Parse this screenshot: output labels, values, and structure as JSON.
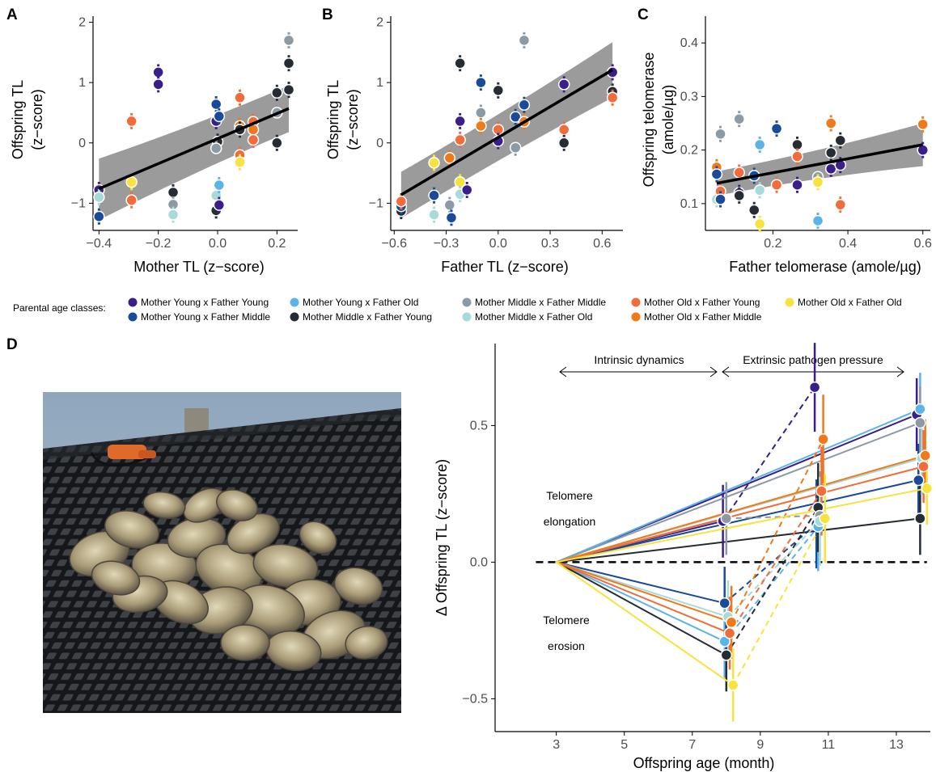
{
  "panels": {
    "A": {
      "letter": "A",
      "xlabel": "Mother TL (z−score)",
      "ylabel_line1": "Offspring TL",
      "ylabel_line2": "(z−score)"
    },
    "B": {
      "letter": "B",
      "xlabel": "Father TL (z−score)",
      "ylabel_line1": "Offspring TL",
      "ylabel_line2": "(z−score)"
    },
    "C": {
      "letter": "C",
      "xlabel": "Father telomerase (amole/µg)",
      "ylabel_line1": "Offspring telomerase",
      "ylabel_line2": "(amole/µg)"
    },
    "D": {
      "letter": "D",
      "xlabel": "Offspring age (month)",
      "ylabel": "Δ Offspring TL (z−score)"
    }
  },
  "legend": {
    "title": "Parental age classes:",
    "items": [
      {
        "label": "Mother Young x Father Young",
        "color": "#3a1f8a"
      },
      {
        "label": "Mother Young x Father Middle",
        "color": "#1a4a9a"
      },
      {
        "label": "Mother Young x Father Old",
        "color": "#5ab4ea"
      },
      {
        "label": "Mother Middle x Father Young",
        "color": "#262c33"
      },
      {
        "label": "Mother Middle x Father Middle",
        "color": "#8c9aa6"
      },
      {
        "label": "Mother Middle x Father Old",
        "color": "#a8dada"
      },
      {
        "label": "Mother Old x Father Young",
        "color": "#f26b3a"
      },
      {
        "label": "Mother Old x Father Middle",
        "color": "#f07a1a"
      },
      {
        "label": "Mother Old x Father Old",
        "color": "#f7e33b"
      }
    ]
  },
  "annotations": {
    "intrinsic": "Intrinsic dynamics",
    "extrinsic": "Extrinsic pathogen pressure",
    "elongation_1": "Telomere",
    "elongation_2": "elongation",
    "erosion_1": "Telomere",
    "erosion_2": "erosion"
  },
  "photo": {
    "description_icon": "oyster-photo"
  },
  "chart_data": [
    {
      "panel": "A",
      "type": "scatter",
      "xlabel": "Mother TL (z−score)",
      "ylabel": "Offspring TL (z−score)",
      "xlim": [
        -0.42,
        0.27
      ],
      "ylim": [
        -1.45,
        2.1
      ],
      "xticks": [
        -0.4,
        -0.2,
        0.0,
        0.2
      ],
      "xticklabels": [
        "−0.4",
        "−0.2",
        "0.0",
        "0.2"
      ],
      "yticks": [
        -1,
        0,
        1,
        2
      ],
      "yticklabels": [
        "−1",
        "0",
        "1",
        "2"
      ],
      "fit": {
        "x": [
          -0.4,
          0.24
        ],
        "y": [
          -0.76,
          0.57
        ],
        "ci_lower": [
          -1.28,
          0.18
        ],
        "ci_upper": [
          -0.26,
          0.95
        ]
      },
      "points": [
        {
          "x": -0.4,
          "y": -0.78,
          "g": 0
        },
        {
          "x": -0.4,
          "y": -1.22,
          "g": 1
        },
        {
          "x": -0.4,
          "y": -0.9,
          "g": 5
        },
        {
          "x": -0.29,
          "y": 0.36,
          "g": 6
        },
        {
          "x": -0.29,
          "y": -0.95,
          "g": 6
        },
        {
          "x": -0.29,
          "y": -0.65,
          "g": 8
        },
        {
          "x": -0.2,
          "y": 1.17,
          "g": 0
        },
        {
          "x": -0.2,
          "y": 0.97,
          "g": 0
        },
        {
          "x": -0.15,
          "y": -0.82,
          "g": 3
        },
        {
          "x": -0.15,
          "y": -1.02,
          "g": 4
        },
        {
          "x": -0.15,
          "y": -1.19,
          "g": 5
        },
        {
          "x": -0.005,
          "y": 0.64,
          "g": 1
        },
        {
          "x": -0.005,
          "y": 0.36,
          "g": 0
        },
        {
          "x": 0.0,
          "y": 0.02,
          "g": 3
        },
        {
          "x": -0.005,
          "y": -0.09,
          "g": 4
        },
        {
          "x": -0.005,
          "y": -0.87,
          "g": 5
        },
        {
          "x": -0.005,
          "y": -1.12,
          "g": 3
        },
        {
          "x": 0.005,
          "y": -1.03,
          "g": 0
        },
        {
          "x": 0.005,
          "y": -0.7,
          "g": 2
        },
        {
          "x": 0.005,
          "y": 0.44,
          "g": 1
        },
        {
          "x": 0.075,
          "y": 0.75,
          "g": 6
        },
        {
          "x": 0.075,
          "y": 0.28,
          "g": 7
        },
        {
          "x": 0.075,
          "y": 0.22,
          "g": 3
        },
        {
          "x": 0.075,
          "y": -0.2,
          "g": 6
        },
        {
          "x": 0.075,
          "y": -0.32,
          "g": 8
        },
        {
          "x": 0.12,
          "y": 0.35,
          "g": 6
        },
        {
          "x": 0.12,
          "y": 0.22,
          "g": 7
        },
        {
          "x": 0.12,
          "y": 0.05,
          "g": 6
        },
        {
          "x": 0.2,
          "y": 0.83,
          "g": 3
        },
        {
          "x": 0.2,
          "y": 0.5,
          "g": 4
        },
        {
          "x": 0.2,
          "y": 0.0,
          "g": 3
        },
        {
          "x": 0.24,
          "y": 1.7,
          "g": 4
        },
        {
          "x": 0.24,
          "y": 1.32,
          "g": 3
        },
        {
          "x": 0.24,
          "y": 0.88,
          "g": 3
        }
      ]
    },
    {
      "panel": "B",
      "type": "scatter",
      "xlabel": "Father TL (z−score)",
      "ylabel": "Offspring TL (z−score)",
      "xlim": [
        -0.62,
        0.72
      ],
      "ylim": [
        -1.45,
        2.1
      ],
      "xticks": [
        -0.6,
        -0.3,
        0.0,
        0.3,
        0.6
      ],
      "xticklabels": [
        "−0.6",
        "−0.3",
        "0.0",
        "0.3",
        "0.6"
      ],
      "yticks": [
        -1,
        0,
        1,
        2
      ],
      "yticklabels": [
        "−1",
        "0",
        "1",
        "2"
      ],
      "fit": {
        "x": [
          -0.56,
          0.66
        ],
        "y": [
          -0.86,
          1.21
        ],
        "ci_lower": [
          -1.25,
          0.75
        ],
        "ci_upper": [
          -0.48,
          1.67
        ]
      },
      "points": [
        {
          "x": -0.56,
          "y": -1.13,
          "g": 3
        },
        {
          "x": -0.56,
          "y": -1.05,
          "g": 1
        },
        {
          "x": -0.56,
          "y": -0.97,
          "g": 6
        },
        {
          "x": -0.37,
          "y": -0.33,
          "g": 8
        },
        {
          "x": -0.37,
          "y": -0.87,
          "g": 1
        },
        {
          "x": -0.37,
          "y": -1.19,
          "g": 5
        },
        {
          "x": -0.28,
          "y": -0.25,
          "g": 7
        },
        {
          "x": -0.28,
          "y": -1.03,
          "g": 4
        },
        {
          "x": -0.27,
          "y": -1.24,
          "g": 1
        },
        {
          "x": -0.22,
          "y": 1.32,
          "g": 3
        },
        {
          "x": -0.22,
          "y": 0.36,
          "g": 0
        },
        {
          "x": -0.22,
          "y": 0.05,
          "g": 6
        },
        {
          "x": -0.22,
          "y": -0.65,
          "g": 8
        },
        {
          "x": -0.22,
          "y": -0.85,
          "g": 5
        },
        {
          "x": -0.18,
          "y": -0.78,
          "g": 0
        },
        {
          "x": -0.1,
          "y": 1.0,
          "g": 1
        },
        {
          "x": -0.1,
          "y": 0.5,
          "g": 4
        },
        {
          "x": -0.1,
          "y": 0.28,
          "g": 7
        },
        {
          "x": 0.0,
          "y": 0.87,
          "g": 3
        },
        {
          "x": 0.0,
          "y": 0.22,
          "g": 6
        },
        {
          "x": 0.0,
          "y": 0.03,
          "g": 0
        },
        {
          "x": 0.1,
          "y": 0.43,
          "g": 1
        },
        {
          "x": 0.1,
          "y": -0.08,
          "g": 4
        },
        {
          "x": 0.15,
          "y": 1.7,
          "g": 4
        },
        {
          "x": 0.15,
          "y": 0.63,
          "g": 1
        },
        {
          "x": 0.15,
          "y": 0.35,
          "g": 7
        },
        {
          "x": 0.38,
          "y": 0.97,
          "g": 0
        },
        {
          "x": 0.38,
          "y": 0.22,
          "g": 6
        },
        {
          "x": 0.38,
          "y": 0.0,
          "g": 3
        },
        {
          "x": 0.66,
          "y": 1.17,
          "g": 0
        },
        {
          "x": 0.66,
          "y": 0.85,
          "g": 3
        },
        {
          "x": 0.66,
          "y": 0.75,
          "g": 6
        }
      ]
    },
    {
      "panel": "C",
      "type": "scatter",
      "xlabel": "Father telomerase (amole/µg)",
      "ylabel": "Offspring telomerase (amole/µg)",
      "xlim": [
        0.02,
        0.62
      ],
      "ylim": [
        0.05,
        0.45
      ],
      "xticks": [
        0.2,
        0.4,
        0.6
      ],
      "xticklabels": [
        "0.2",
        "0.4",
        "0.6"
      ],
      "yticks": [
        0.1,
        0.2,
        0.3,
        0.4
      ],
      "yticklabels": [
        "0.1",
        "0.2",
        "0.3",
        "0.4"
      ],
      "fit": {
        "x": [
          0.05,
          0.6
        ],
        "y": [
          0.138,
          0.21
        ],
        "ci_lower": [
          0.115,
          0.17
        ],
        "ci_upper": [
          0.16,
          0.25
        ]
      },
      "points": [
        {
          "x": 0.05,
          "y": 0.168,
          "g": 7
        },
        {
          "x": 0.05,
          "y": 0.155,
          "g": 1
        },
        {
          "x": 0.05,
          "y": 0.108,
          "g": 5
        },
        {
          "x": 0.06,
          "y": 0.23,
          "g": 4
        },
        {
          "x": 0.06,
          "y": 0.123,
          "g": 6
        },
        {
          "x": 0.06,
          "y": 0.108,
          "g": 1
        },
        {
          "x": 0.11,
          "y": 0.258,
          "g": 4
        },
        {
          "x": 0.11,
          "y": 0.158,
          "g": 6
        },
        {
          "x": 0.11,
          "y": 0.12,
          "g": 0
        },
        {
          "x": 0.11,
          "y": 0.115,
          "g": 3
        },
        {
          "x": 0.15,
          "y": 0.152,
          "g": 1
        },
        {
          "x": 0.15,
          "y": 0.088,
          "g": 3
        },
        {
          "x": 0.165,
          "y": 0.21,
          "g": 2
        },
        {
          "x": 0.165,
          "y": 0.125,
          "g": 5
        },
        {
          "x": 0.165,
          "y": 0.062,
          "g": 8
        },
        {
          "x": 0.21,
          "y": 0.24,
          "g": 1
        },
        {
          "x": 0.21,
          "y": 0.135,
          "g": 6
        },
        {
          "x": 0.265,
          "y": 0.21,
          "g": 3
        },
        {
          "x": 0.265,
          "y": 0.188,
          "g": 6
        },
        {
          "x": 0.265,
          "y": 0.135,
          "g": 0
        },
        {
          "x": 0.32,
          "y": 0.15,
          "g": 4
        },
        {
          "x": 0.32,
          "y": 0.14,
          "g": 8
        },
        {
          "x": 0.32,
          "y": 0.068,
          "g": 2
        },
        {
          "x": 0.355,
          "y": 0.25,
          "g": 7
        },
        {
          "x": 0.355,
          "y": 0.195,
          "g": 3
        },
        {
          "x": 0.355,
          "y": 0.165,
          "g": 0
        },
        {
          "x": 0.38,
          "y": 0.218,
          "g": 3
        },
        {
          "x": 0.38,
          "y": 0.172,
          "g": 0
        },
        {
          "x": 0.38,
          "y": 0.098,
          "g": 6
        },
        {
          "x": 0.6,
          "y": 0.248,
          "g": 7
        },
        {
          "x": 0.6,
          "y": 0.2,
          "g": 0
        }
      ]
    },
    {
      "panel": "D",
      "type": "line",
      "xlabel": "Offspring age (month)",
      "ylabel": "Δ Offspring TL (z−score)",
      "xlim": [
        1.2,
        14.0
      ],
      "ylim": [
        -0.62,
        0.8
      ],
      "xticks": [
        3,
        5,
        7,
        9,
        11,
        13
      ],
      "xticklabels": [
        "3",
        "5",
        "7",
        "9",
        "11",
        "13"
      ],
      "yticks": [
        -0.5,
        0.0,
        0.5
      ],
      "yticklabels": [
        "−0.5",
        "0.0",
        "0.5"
      ],
      "reference_y": 0.0,
      "series": [
        {
          "g": 0,
          "x": [
            3,
            7.9,
            10.6,
            13.6
          ],
          "y": [
            0,
            0.15,
            0.64,
            0.54
          ]
        },
        {
          "g": 1,
          "x": [
            3,
            7.95,
            10.65,
            13.65
          ],
          "y": [
            0,
            -0.15,
            0.14,
            0.3
          ]
        },
        {
          "g": 2,
          "x": [
            3,
            7.95,
            10.7,
            13.7
          ],
          "y": [
            0,
            -0.29,
            0.13,
            0.56
          ]
        },
        {
          "g": 3,
          "x": [
            3,
            8.0,
            10.7,
            13.7
          ],
          "y": [
            0,
            -0.34,
            0.2,
            0.16
          ]
        },
        {
          "g": 4,
          "x": [
            3,
            8.0,
            10.75,
            13.7
          ],
          "y": [
            0,
            0.16,
            0.17,
            0.51
          ]
        },
        {
          "g": 5,
          "x": [
            3,
            8.05,
            10.75,
            13.75
          ],
          "y": [
            0,
            -0.2,
            0.15,
            0.38
          ]
        },
        {
          "g": 6,
          "x": [
            3,
            8.1,
            10.8,
            13.8
          ],
          "y": [
            0,
            -0.26,
            0.26,
            0.35
          ]
        },
        {
          "g": 7,
          "x": [
            3,
            8.15,
            10.85,
            13.85
          ],
          "y": [
            0,
            -0.22,
            0.45,
            0.39
          ]
        },
        {
          "g": 8,
          "x": [
            3,
            8.2,
            10.9,
            13.9
          ],
          "y": [
            0,
            -0.45,
            0.16,
            0.27
          ]
        }
      ]
    }
  ]
}
